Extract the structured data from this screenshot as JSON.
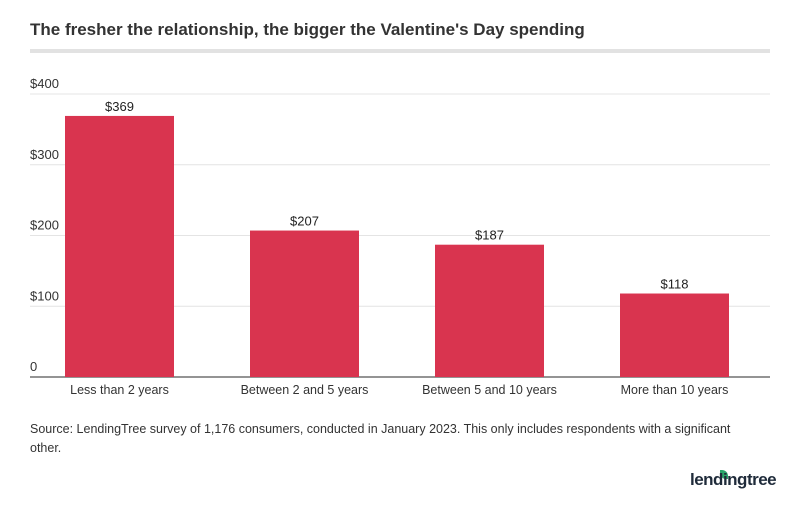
{
  "chart_data": {
    "type": "bar",
    "title": "The fresher the relationship, the bigger the Valentine's Day spending",
    "categories": [
      "Less than 2 years",
      "Between 2 and 5 years",
      "Between 5 and 10 years",
      "More than 10 years"
    ],
    "values": [
      369,
      207,
      187,
      118
    ],
    "data_labels": [
      "$369",
      "$207",
      "$187",
      "$118"
    ],
    "yticks": [
      0,
      100,
      200,
      300,
      400
    ],
    "ytick_labels": [
      "0",
      "$100",
      "$200",
      "$300",
      "$400"
    ],
    "ylim": [
      0,
      400
    ],
    "grid": true,
    "bar_color": "#d9344f",
    "xlabel": "",
    "ylabel": ""
  },
  "source": "Source: LendingTree survey of 1,176 consumers, conducted in January 2023. This only includes respondents with a significant other.",
  "logo": "lendingtree",
  "logo_color": "#2aa56a"
}
